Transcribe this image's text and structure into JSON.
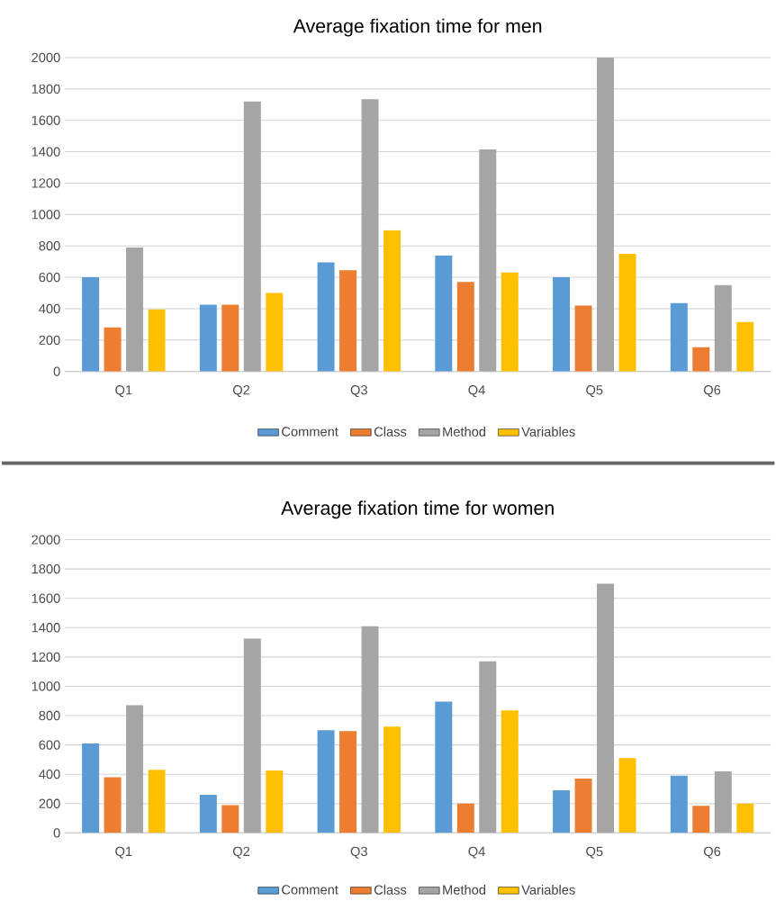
{
  "chart_data": [
    {
      "type": "bar",
      "title": "Average fixation time for men",
      "categories": [
        "Q1",
        "Q2",
        "Q3",
        "Q4",
        "Q5",
        "Q6"
      ],
      "ylim": [
        0,
        2000
      ],
      "yticks": [
        0,
        200,
        400,
        600,
        800,
        1000,
        1200,
        1400,
        1600,
        1800,
        2000
      ],
      "grid": "y",
      "legend": "bottom",
      "series": [
        {
          "name": "Comment",
          "color": "#5b9bd5",
          "values": [
            600,
            425,
            695,
            740,
            600,
            435
          ]
        },
        {
          "name": "Class",
          "color": "#ed7d31",
          "values": [
            280,
            425,
            645,
            570,
            420,
            155
          ]
        },
        {
          "name": "Method",
          "color": "#a5a5a5",
          "values": [
            790,
            1720,
            1735,
            1415,
            2000,
            550
          ]
        },
        {
          "name": "Variables",
          "color": "#ffc000",
          "values": [
            395,
            500,
            900,
            630,
            750,
            315
          ]
        }
      ]
    },
    {
      "type": "bar",
      "title": "Average fixation time for women",
      "categories": [
        "Q1",
        "Q2",
        "Q3",
        "Q4",
        "Q5",
        "Q6"
      ],
      "ylim": [
        0,
        2000
      ],
      "yticks": [
        0,
        200,
        400,
        600,
        800,
        1000,
        1200,
        1400,
        1600,
        1800,
        2000
      ],
      "grid": "y",
      "legend": "bottom",
      "series": [
        {
          "name": "Comment",
          "color": "#5b9bd5",
          "values": [
            610,
            260,
            700,
            895,
            290,
            390
          ]
        },
        {
          "name": "Class",
          "color": "#ed7d31",
          "values": [
            380,
            190,
            695,
            200,
            370,
            185
          ]
        },
        {
          "name": "Method",
          "color": "#a5a5a5",
          "values": [
            870,
            1325,
            1410,
            1170,
            1700,
            420
          ]
        },
        {
          "name": "Variables",
          "color": "#ffc000",
          "values": [
            430,
            425,
            725,
            835,
            510,
            200
          ]
        }
      ]
    }
  ]
}
